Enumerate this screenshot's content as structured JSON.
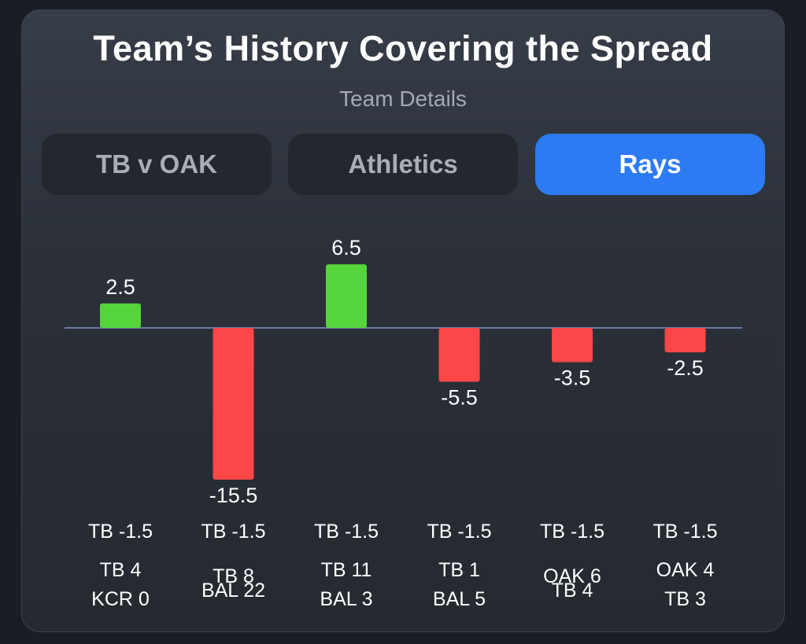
{
  "header": {
    "title": "Team’s History Covering the Spread",
    "subtitle": "Team Details"
  },
  "tabs": [
    {
      "label": "TB v OAK",
      "active": false
    },
    {
      "label": "Athletics",
      "active": false
    },
    {
      "label": "Rays",
      "active": true
    }
  ],
  "colors": {
    "positive": "#55d53b",
    "negative": "#fb4747",
    "baseline": "#6b7ba0",
    "active_tab": "#2c7bf2"
  },
  "chart_data": {
    "type": "bar",
    "values": [
      2.5,
      -15.5,
      6.5,
      -5.5,
      -3.5,
      -2.5
    ],
    "value_labels": [
      "2.5",
      "-15.5",
      "6.5",
      "-5.5",
      "-3.5",
      "-2.5"
    ],
    "spreads": [
      "TB -1.5",
      "TB -1.5",
      "TB -1.5",
      "TB -1.5",
      "TB -1.5",
      "TB -1.5"
    ],
    "scores": [
      [
        "TB 4",
        "KCR 0"
      ],
      [
        "TB 8",
        "BAL 22"
      ],
      [
        "TB 11",
        "BAL 3"
      ],
      [
        "TB 1",
        "BAL 5"
      ],
      [
        "OAK 6",
        "TB 4"
      ],
      [
        "OAK 4",
        "TB 3"
      ]
    ],
    "ylim": [
      -15.5,
      6.5
    ],
    "grid": false,
    "legend": "none"
  }
}
